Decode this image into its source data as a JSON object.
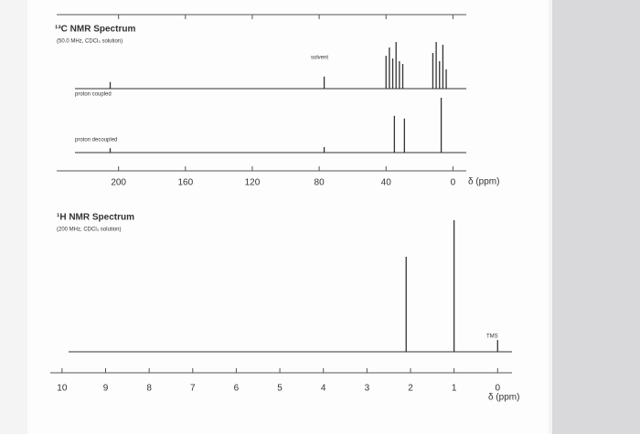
{
  "chart_data": [
    {
      "type": "spectrum",
      "title": "¹³C NMR Spectrum",
      "subtitle": "(50.0 MHz, CDCl₃ solution)",
      "xlabel": "δ (ppm)",
      "xlim": [
        237,
        -8
      ],
      "xticks": [
        200,
        160,
        120,
        80,
        40,
        0
      ],
      "ylim": [
        0,
        100
      ],
      "annotations": [
        "solvent"
      ],
      "series": [
        {
          "name": "proton coupled",
          "color": "#333333",
          "x": [
            205,
            77,
            40,
            38,
            36,
            34,
            32,
            30,
            12,
            10,
            8,
            6,
            4
          ],
          "values": [
            12,
            22,
            60,
            75,
            55,
            85,
            50,
            45,
            65,
            85,
            50,
            80,
            35
          ]
        },
        {
          "name": "proton decoupled",
          "color": "#333333",
          "x": [
            205,
            77,
            35,
            29,
            7
          ],
          "values": [
            8,
            10,
            67,
            62,
            100
          ]
        }
      ]
    },
    {
      "type": "spectrum",
      "title": "¹H NMR Spectrum",
      "subtitle": "(200 MHz, CDCl₃ solution)",
      "xlabel": "δ (ppm)",
      "xlim": [
        10.27,
        -0.33
      ],
      "xticks": [
        10,
        9,
        8,
        7,
        6,
        5,
        4,
        3,
        2,
        1,
        0
      ],
      "ylim": [
        0,
        100
      ],
      "annotations": [
        "TMS"
      ],
      "x": [
        2.1,
        1.0,
        0
      ],
      "values": [
        65,
        90,
        8
      ],
      "color": "#333333"
    }
  ]
}
